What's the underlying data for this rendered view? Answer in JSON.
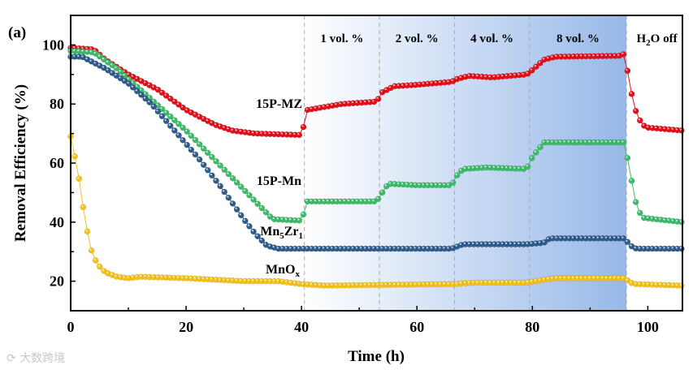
{
  "chart_data": {
    "type": "line",
    "panel_label": "(a)",
    "xlabel": "Time (h)",
    "ylabel": "Removal Efficiency (%)",
    "xlim": [
      0,
      106
    ],
    "ylim": [
      10,
      110
    ],
    "xticks": [
      0,
      20,
      40,
      60,
      80,
      100
    ],
    "yticks": [
      20,
      40,
      60,
      80,
      100
    ],
    "grid": false,
    "regions": [
      {
        "label": "1 vol. %",
        "start": 40.5,
        "end": 53.5
      },
      {
        "label": "2 vol. %",
        "start": 53.5,
        "end": 66.5
      },
      {
        "label": "4 vol. %",
        "start": 66.5,
        "end": 79.5
      },
      {
        "label": "8 vol. %",
        "start": 79.5,
        "end": 96.3
      }
    ],
    "h2o_off_label": {
      "main": "H",
      "sub": "2",
      "rest": "O off"
    },
    "region_gradient": {
      "from": "#ffffff",
      "to": "#97b8e8"
    },
    "series": [
      {
        "name": "15P-MZ",
        "label_main": "15P-MZ",
        "label_sub": "",
        "label_sub2": "",
        "color": "#e3101a",
        "points": [
          [
            0,
            99
          ],
          [
            4,
            98.5
          ],
          [
            6,
            95
          ],
          [
            10,
            90
          ],
          [
            15,
            85
          ],
          [
            20,
            78
          ],
          [
            25,
            73
          ],
          [
            28,
            71
          ],
          [
            32,
            70
          ],
          [
            40,
            69.5
          ],
          [
            41,
            78
          ],
          [
            44,
            79
          ],
          [
            47,
            80
          ],
          [
            53,
            80.8
          ],
          [
            54,
            84
          ],
          [
            56,
            86
          ],
          [
            60,
            86.5
          ],
          [
            66,
            87.5
          ],
          [
            67,
            88.5
          ],
          [
            69,
            89.5
          ],
          [
            73,
            89
          ],
          [
            79,
            90
          ],
          [
            80,
            91.5
          ],
          [
            82,
            95
          ],
          [
            84,
            96
          ],
          [
            95,
            96.3
          ],
          [
            96,
            97
          ],
          [
            97,
            85
          ],
          [
            98,
            77
          ],
          [
            99,
            73
          ],
          [
            100,
            72
          ],
          [
            106,
            71
          ]
        ]
      },
      {
        "name": "15P-Mn",
        "label_main": "15P-Mn",
        "label_sub": "",
        "label_sub2": "",
        "color": "#3dbb6b",
        "points": [
          [
            0,
            98
          ],
          [
            4,
            97.5
          ],
          [
            8,
            92
          ],
          [
            12,
            85
          ],
          [
            16,
            78
          ],
          [
            20,
            71
          ],
          [
            24,
            63
          ],
          [
            28,
            55
          ],
          [
            32,
            47
          ],
          [
            35,
            41
          ],
          [
            40,
            40.5
          ],
          [
            41,
            47
          ],
          [
            53,
            47
          ],
          [
            54,
            50
          ],
          [
            55,
            53
          ],
          [
            60,
            52.5
          ],
          [
            66,
            52.5
          ],
          [
            67,
            56
          ],
          [
            68,
            58
          ],
          [
            72,
            58.5
          ],
          [
            79,
            58
          ],
          [
            80,
            62
          ],
          [
            81,
            64.5
          ],
          [
            82,
            67
          ],
          [
            96,
            67
          ],
          [
            97,
            56
          ],
          [
            98,
            46
          ],
          [
            99,
            41.5
          ],
          [
            106,
            40
          ]
        ]
      },
      {
        "name": "Mn5Zr1",
        "label_main": "Mn",
        "label_sub": "5",
        "label_mid": "Zr",
        "label_sub2": "1",
        "color": "#2e5c8c",
        "points": [
          [
            0,
            96
          ],
          [
            2,
            96
          ],
          [
            6,
            92
          ],
          [
            10,
            87
          ],
          [
            14,
            80
          ],
          [
            18,
            71
          ],
          [
            22,
            62
          ],
          [
            26,
            52
          ],
          [
            30,
            41
          ],
          [
            32,
            36
          ],
          [
            34,
            32
          ],
          [
            36,
            31
          ],
          [
            40,
            31
          ],
          [
            66,
            31
          ],
          [
            68,
            32.5
          ],
          [
            79,
            32.5
          ],
          [
            82,
            33
          ],
          [
            83,
            34.5
          ],
          [
            96,
            34.5
          ],
          [
            97,
            32
          ],
          [
            98,
            31
          ],
          [
            106,
            31
          ]
        ]
      },
      {
        "name": "MnOx",
        "label_main": "MnO",
        "label_sub": "x",
        "label_sub2": "",
        "color": "#f4c21a",
        "points": [
          [
            0,
            69
          ],
          [
            0.5,
            64
          ],
          [
            1,
            60
          ],
          [
            1.5,
            54
          ],
          [
            2,
            47
          ],
          [
            2.5,
            41
          ],
          [
            3,
            35.5
          ],
          [
            3.5,
            31
          ],
          [
            4,
            28
          ],
          [
            5,
            25
          ],
          [
            6,
            23
          ],
          [
            8,
            21.5
          ],
          [
            10,
            21
          ],
          [
            12,
            21.5
          ],
          [
            20,
            21
          ],
          [
            30,
            20
          ],
          [
            36,
            20
          ],
          [
            40,
            19
          ],
          [
            44,
            18.5
          ],
          [
            66,
            19
          ],
          [
            70,
            19.5
          ],
          [
            79,
            19.5
          ],
          [
            82,
            20.5
          ],
          [
            84,
            21
          ],
          [
            96,
            21
          ],
          [
            97,
            19.5
          ],
          [
            98,
            19
          ],
          [
            106,
            18.5
          ]
        ]
      }
    ]
  },
  "watermark": "大数跨境"
}
